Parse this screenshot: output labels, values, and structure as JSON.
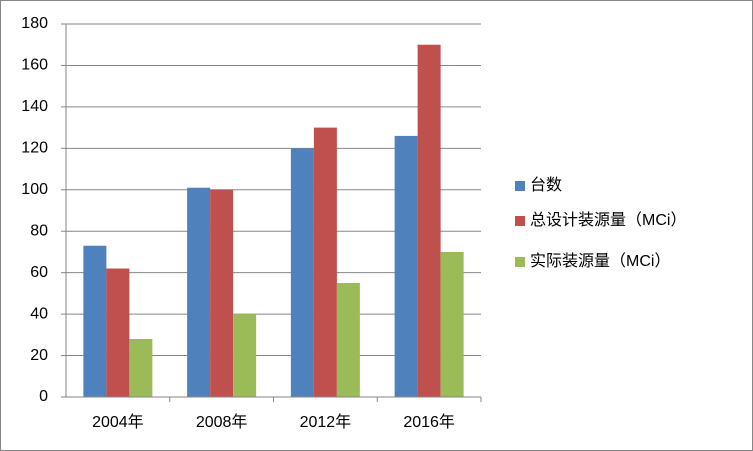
{
  "chart_data": {
    "type": "bar",
    "categories": [
      "2004年",
      "2008年",
      "2012年",
      "2016年"
    ],
    "series": [
      {
        "name": "台数",
        "color": "#4f81bd",
        "values": [
          73,
          101,
          120,
          126
        ]
      },
      {
        "name": "总设计装源量（MCi）",
        "color": "#c0504d",
        "values": [
          62,
          100,
          130,
          170
        ]
      },
      {
        "name": "实际装源量（MCi）",
        "color": "#9bbb59",
        "values": [
          28,
          40,
          55,
          70
        ]
      }
    ],
    "ylim": [
      0,
      180
    ],
    "yticks": [
      0,
      20,
      40,
      60,
      80,
      100,
      120,
      140,
      160,
      180
    ],
    "grid": true,
    "legend": "right"
  }
}
